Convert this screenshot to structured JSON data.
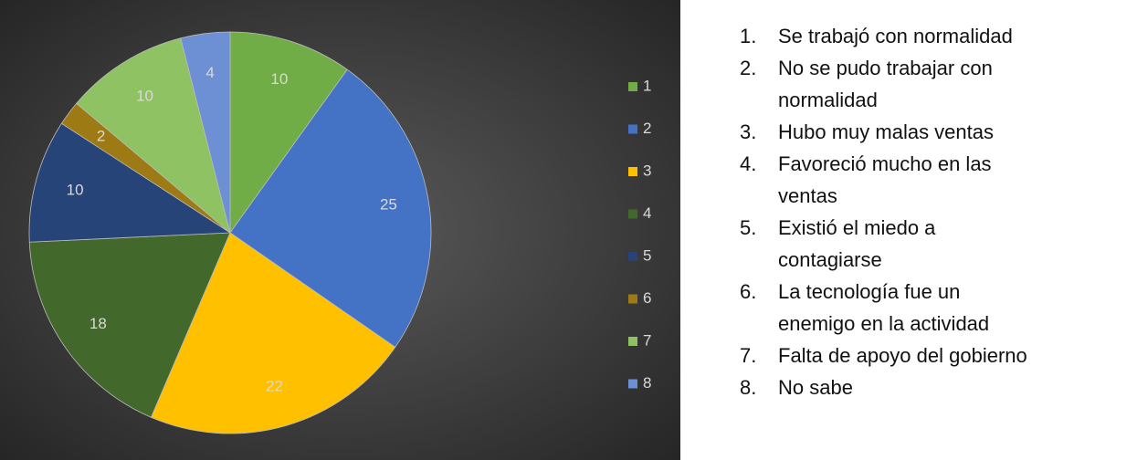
{
  "chart_data": {
    "type": "pie",
    "categories": [
      "1",
      "2",
      "3",
      "4",
      "5",
      "6",
      "7",
      "8"
    ],
    "values": [
      10,
      25,
      22,
      18,
      10,
      2,
      10,
      4
    ],
    "colors": [
      "#70ad47",
      "#4472c4",
      "#ffc000",
      "#43682b",
      "#264478",
      "#9e7a15",
      "#8fc262",
      "#6d8fd4"
    ],
    "legend": "right"
  },
  "descriptions": [
    [
      "Se trabajó con normalidad"
    ],
    [
      "No se pudo trabajar con",
      "normalidad"
    ],
    [
      "Hubo muy malas ventas"
    ],
    [
      "Favoreció mucho en las",
      "ventas"
    ],
    [
      "Existió el miedo a",
      "contagiarse"
    ],
    [
      "La tecnología fue un",
      "enemigo en la actividad"
    ],
    [
      "Falta de apoyo del gobierno"
    ],
    [
      "No sabe"
    ]
  ]
}
